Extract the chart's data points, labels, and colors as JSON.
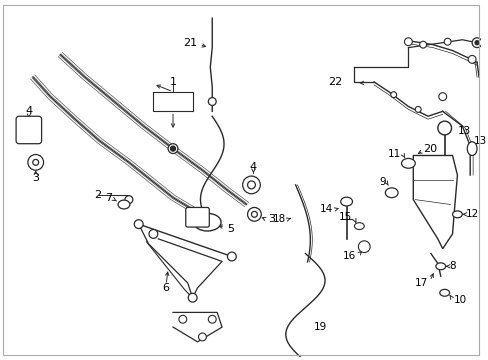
{
  "background_color": "#ffffff",
  "fig_width": 4.89,
  "fig_height": 3.6,
  "dpi": 100,
  "label_fontsize": 7.5,
  "line_color": "#2a2a2a",
  "lw_thick": 1.8,
  "lw_med": 1.0,
  "lw_thin": 0.7
}
